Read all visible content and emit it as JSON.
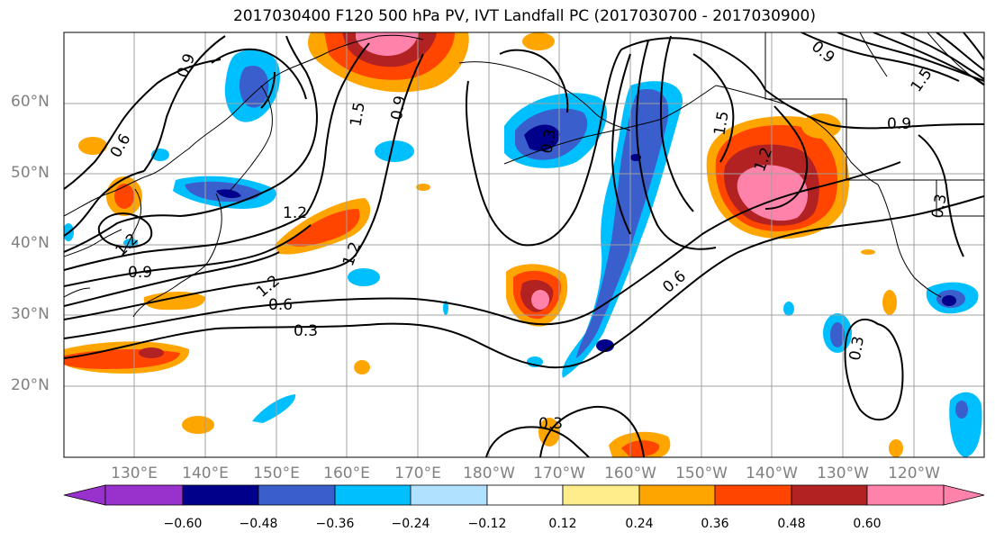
{
  "title": "2017030400 F120 500 hPa PV, IVT Landfall PC (2017030700 - 2017030900)",
  "lat_labels": [
    "60°N",
    "50°N",
    "40°N",
    "30°N",
    "20°N"
  ],
  "lon_labels": [
    "130°E",
    "140°E",
    "150°E",
    "160°E",
    "170°E",
    "180°W",
    "170°W",
    "160°W",
    "150°W",
    "140°W",
    "130°W",
    "120°W"
  ],
  "colorbar": {
    "colors": [
      "#9932cc",
      "#00008b",
      "#3a5fcd",
      "#00bfff",
      "#b0e2ff",
      "#ffffff",
      "#ffec8b",
      "#ffa500",
      "#ff4500",
      "#b22222",
      "#ff82ab"
    ],
    "tick_labels": [
      "−0.60",
      "−0.48",
      "−0.36",
      "−0.24",
      "−0.12",
      "0.12",
      "0.24",
      "0.36",
      "0.48",
      "0.60"
    ]
  },
  "contour_labels": [
    "0.9",
    "0.6",
    "1.2",
    "1.5",
    "0.9",
    "0.6",
    "1.2",
    "0.9",
    "1.2",
    "0.6",
    "0.3",
    "0.3",
    "0.3",
    "0.6",
    "1.5",
    "1.2",
    "0.9",
    "0.3",
    "0.3",
    "0.9",
    "1.5"
  ]
}
